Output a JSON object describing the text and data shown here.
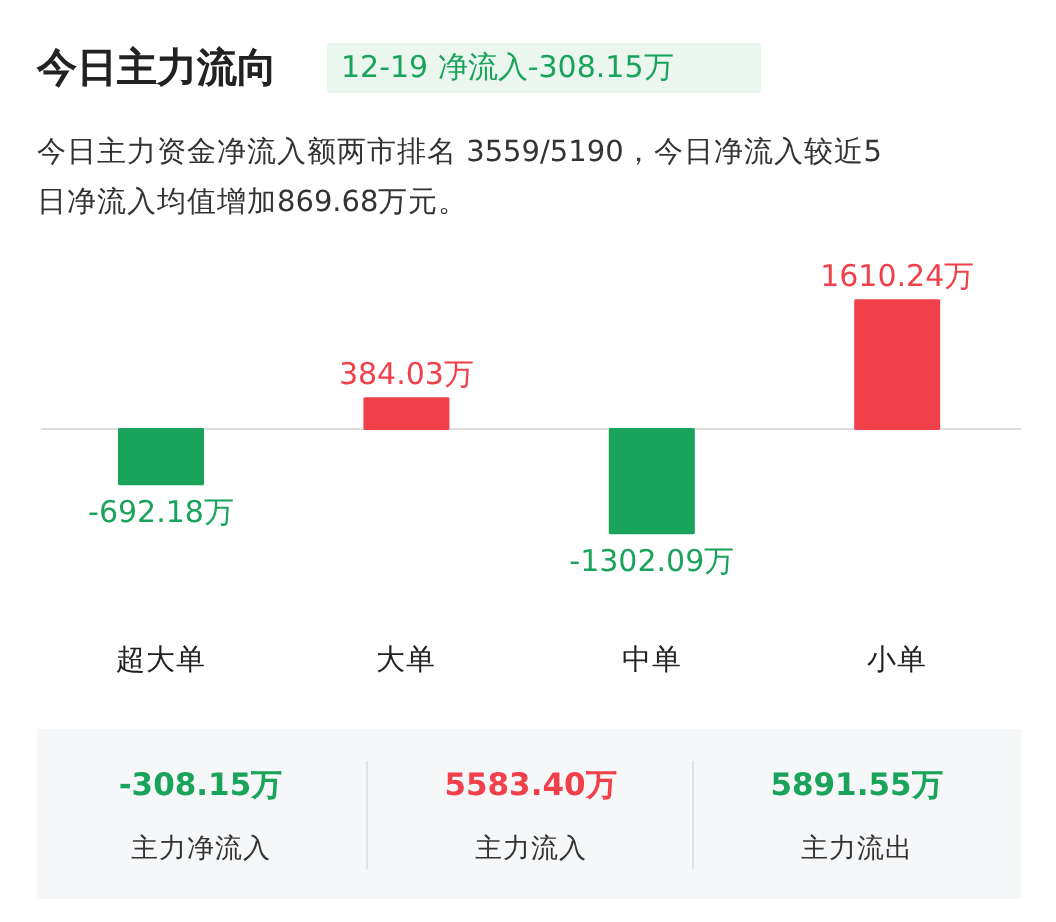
{
  "chart_data": {
    "type": "bar",
    "title": "今日主力流向",
    "subtitle": "12-19 净流入-308.15万",
    "categories": [
      "超大单",
      "大单",
      "中单",
      "小单"
    ],
    "values": [
      -692.18,
      384.03,
      -1302.09,
      1610.24
    ],
    "colors": [
      "#1aa35a",
      "#f2404b",
      "#1aa35a",
      "#f2404b"
    ],
    "value_labels": [
      "-692.18万",
      "384.03万",
      "-1302.09万",
      "1610.24万"
    ],
    "annotations": [
      "今日主力资金净流入额两市排名 3559/5190，今日净流入较近5",
      "日净流入均值增加869.68万元。",
      "-308.15万",
      "主力净流入",
      "5583.40万",
      "主力流入",
      "5891.55万",
      "主力流出"
    ]
  }
}
